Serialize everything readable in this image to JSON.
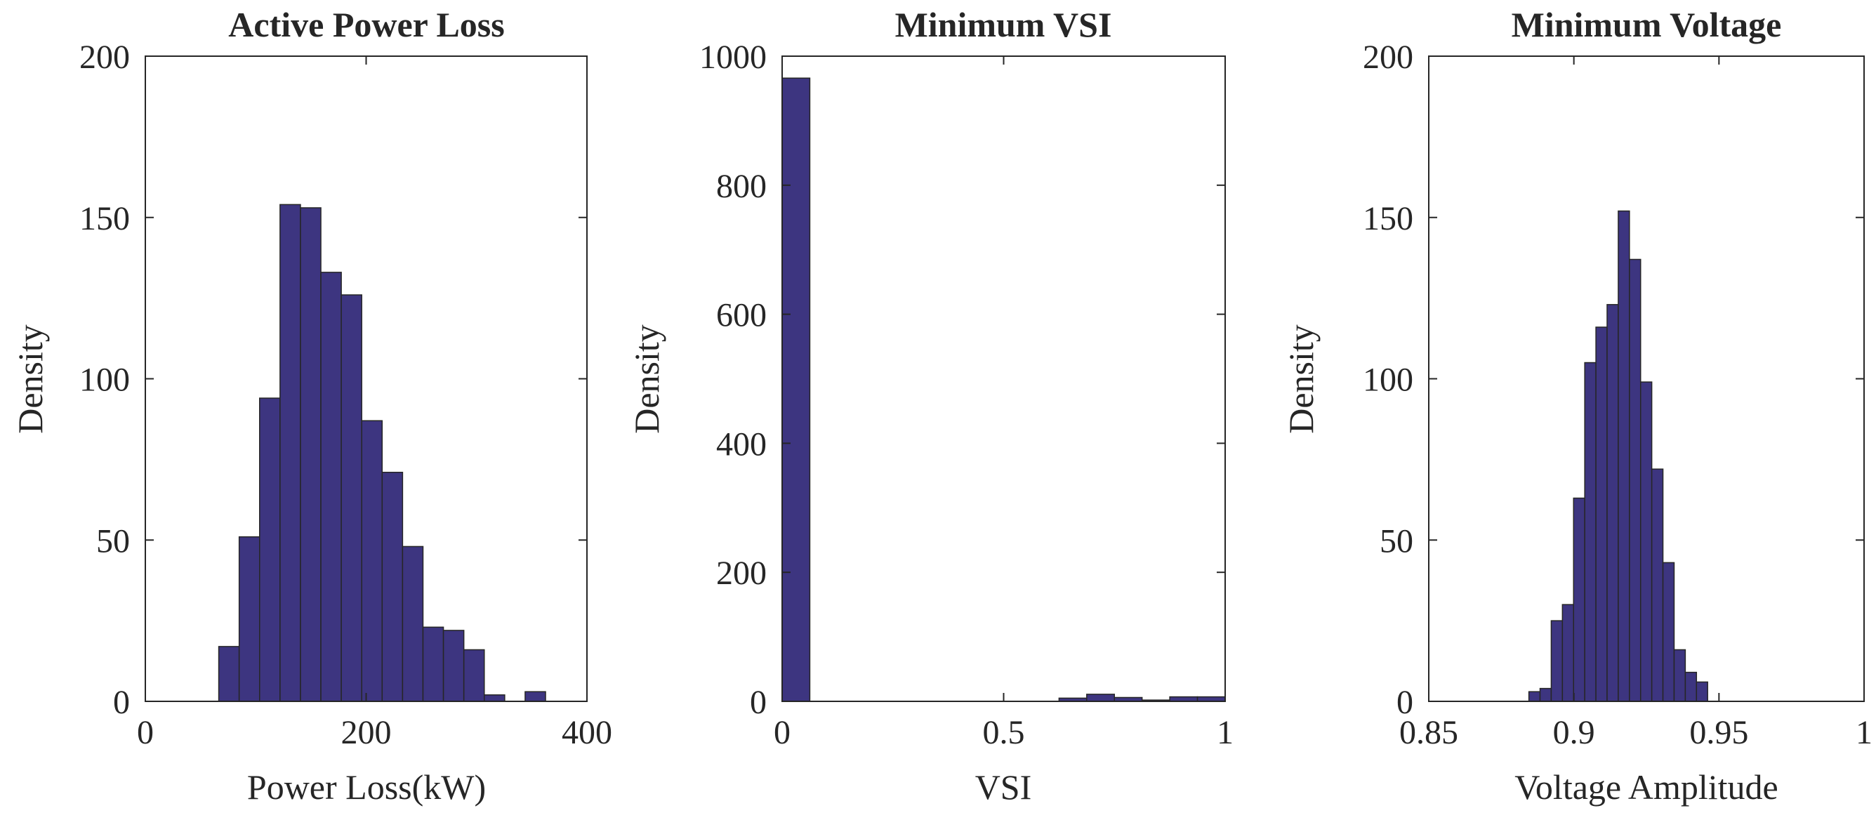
{
  "colors": {
    "bar_fill": "#3d3580",
    "bar_edge": "#262626",
    "axis": "#262626"
  },
  "chart_data": [
    {
      "type": "bar",
      "title": "Active Power Loss",
      "xlabel": "Power Loss(kW)",
      "ylabel": "Density",
      "xlim": [
        0,
        400
      ],
      "ylim": [
        0,
        200
      ],
      "xticks": [
        0,
        200,
        400
      ],
      "yticks": [
        0,
        50,
        100,
        150,
        200
      ],
      "bin_width": 18.5,
      "bins_start": [
        66.5,
        85,
        103.5,
        122,
        140.5,
        159,
        177.5,
        196,
        214.5,
        233,
        251.5,
        270,
        288.5,
        307,
        325.5,
        344
      ],
      "values": [
        17,
        51,
        94,
        154,
        153,
        133,
        126,
        87,
        71,
        48,
        23,
        22,
        16,
        2,
        0,
        3
      ],
      "grid": false
    },
    {
      "type": "bar",
      "title": "Minimum VSI",
      "xlabel": "VSI",
      "ylabel": "Density",
      "xlim": [
        0,
        1
      ],
      "ylim": [
        0,
        1000
      ],
      "xticks": [
        0,
        0.5,
        1
      ],
      "yticks": [
        0,
        200,
        400,
        600,
        800,
        1000
      ],
      "bin_width": 0.0625,
      "bins_start": [
        0,
        0.0625,
        0.125,
        0.1875,
        0.25,
        0.3125,
        0.375,
        0.4375,
        0.5,
        0.5625,
        0.625,
        0.6875,
        0.75,
        0.8125,
        0.875,
        0.9375
      ],
      "values": [
        966,
        0,
        0,
        0,
        0,
        0,
        0,
        0,
        0,
        0,
        5,
        11,
        6,
        2,
        7,
        7
      ],
      "grid": false
    },
    {
      "type": "bar",
      "title": "Minimum Voltage",
      "xlabel": "Voltage Amplitude",
      "ylabel": "Density",
      "xlim": [
        0.85,
        1
      ],
      "ylim": [
        0,
        200
      ],
      "xticks": [
        0.85,
        0.9,
        0.95,
        1
      ],
      "yticks": [
        0,
        50,
        100,
        150,
        200
      ],
      "bin_width": 0.00385,
      "bins_start": [
        0.8845,
        0.88835,
        0.8922,
        0.89605,
        0.8999,
        0.90375,
        0.9076,
        0.91145,
        0.9153,
        0.91915,
        0.923,
        0.92685,
        0.9307,
        0.93455,
        0.9384,
        0.94225,
        0.9461,
        0.94995,
        0.9538,
        0.95765
      ],
      "values": [
        3,
        4,
        25,
        30,
        63,
        105,
        116,
        123,
        152,
        137,
        99,
        72,
        43,
        16,
        9,
        6,
        0,
        0,
        0,
        0
      ],
      "grid": false
    }
  ]
}
